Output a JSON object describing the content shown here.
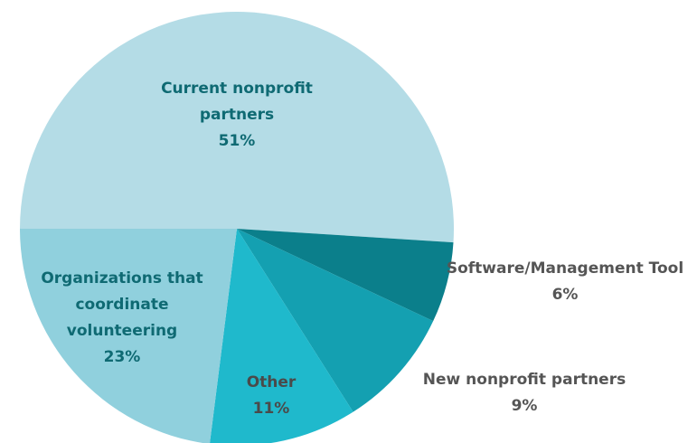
{
  "chart_data": {
    "type": "pie",
    "categories": [
      "Current nonprofit partners",
      "Software/Management Tool",
      "New nonprofit partners",
      "Other",
      "Organizations that coordinate volunteering"
    ],
    "values": [
      51,
      6,
      9,
      11,
      23
    ],
    "value_labels": [
      "51%",
      "6%",
      "9%",
      "11%",
      "23%"
    ],
    "colors": [
      "#b4dce6",
      "#0b7f8b",
      "#14a0b1",
      "#1fb9cc",
      "#90d0dd"
    ]
  }
}
